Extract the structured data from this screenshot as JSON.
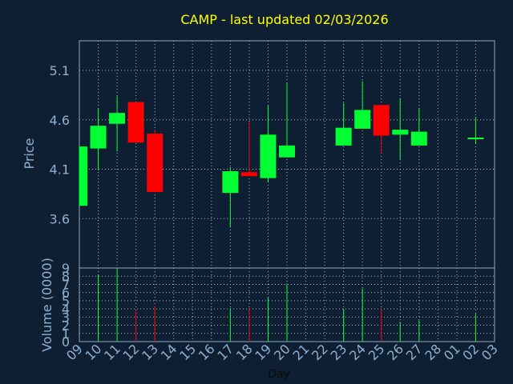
{
  "chart_data": {
    "type": "candlestick",
    "title": "CAMP - last updated 02/03/2026",
    "xlabel": "Day",
    "price_ylabel": "Price",
    "volume_ylabel": "Volume (0000)",
    "x_ticks": [
      "09",
      "10",
      "11",
      "12",
      "13",
      "14",
      "15",
      "16",
      "17",
      "18",
      "19",
      "20",
      "21",
      "22",
      "23",
      "24",
      "25",
      "26",
      "27",
      "28",
      "01",
      "02",
      "03"
    ],
    "price_ticks": [
      "3.6",
      "4.1",
      "4.6",
      "5.1"
    ],
    "price_ylim": [
      3.1,
      5.4
    ],
    "volume_ticks": [
      "0",
      "1",
      "2",
      "3",
      "4",
      "5",
      "6",
      "7",
      "8",
      "9"
    ],
    "volume_ylim": [
      0,
      9
    ],
    "grid": true,
    "up_color": "#00ff33",
    "down_color": "#ff0000",
    "candles": [
      {
        "day": "09",
        "open": 3.73,
        "high": 4.34,
        "low": 3.73,
        "close": 4.33,
        "volume": 0
      },
      {
        "day": "10",
        "open": 4.31,
        "high": 4.72,
        "low": 4.09,
        "close": 4.54,
        "volume": 8.2
      },
      {
        "day": "11",
        "open": 4.56,
        "high": 4.84,
        "low": 4.28,
        "close": 4.67,
        "volume": 8.9
      },
      {
        "day": "12",
        "open": 4.78,
        "high": 4.78,
        "low": 4.37,
        "close": 4.37,
        "volume": 3.8
      },
      {
        "day": "13",
        "open": 4.46,
        "high": 4.5,
        "low": 3.87,
        "close": 3.87,
        "volume": 4.3
      },
      {
        "day": "17",
        "open": 3.86,
        "high": 4.12,
        "low": 3.51,
        "close": 4.08,
        "volume": 4.1
      },
      {
        "day": "18",
        "open": 4.07,
        "high": 4.58,
        "low": 4.03,
        "close": 4.03,
        "volume": 4.1
      },
      {
        "day": "19",
        "open": 4.01,
        "high": 4.75,
        "low": 3.97,
        "close": 4.45,
        "volume": 5.4
      },
      {
        "day": "20",
        "open": 4.22,
        "high": 4.97,
        "low": 4.22,
        "close": 4.34,
        "volume": 7.1
      },
      {
        "day": "23",
        "open": 4.34,
        "high": 4.77,
        "low": 4.34,
        "close": 4.52,
        "volume": 4.0
      },
      {
        "day": "24",
        "open": 4.51,
        "high": 4.99,
        "low": 4.51,
        "close": 4.7,
        "volume": 6.5
      },
      {
        "day": "25",
        "open": 4.75,
        "high": 4.75,
        "low": 4.26,
        "close": 4.44,
        "volume": 4.0
      },
      {
        "day": "26",
        "open": 4.45,
        "high": 4.82,
        "low": 4.2,
        "close": 4.5,
        "volume": 2.4
      },
      {
        "day": "27",
        "open": 4.34,
        "high": 4.72,
        "low": 4.34,
        "close": 4.48,
        "volume": 2.6
      },
      {
        "day": "02",
        "open": 4.41,
        "high": 4.63,
        "low": 4.36,
        "close": 4.42,
        "volume": 3.4
      }
    ]
  }
}
